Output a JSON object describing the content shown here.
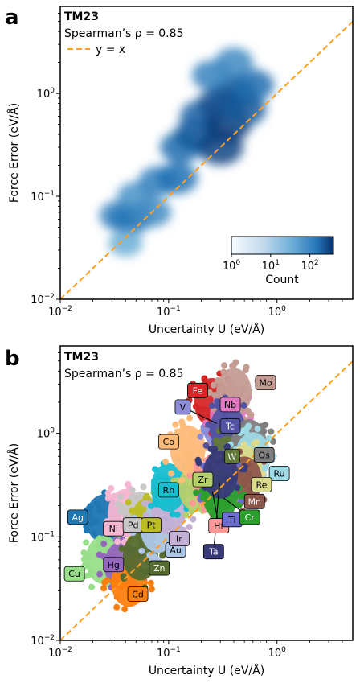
{
  "figure": {
    "panel_a_letter": "a",
    "panel_b_letter": "b"
  },
  "chart_data": [
    {
      "type": "heatmap",
      "panel": "a",
      "xlabel": "Uncertainty U (eV/Å)",
      "ylabel": "Force Error (eV/Å)",
      "xscale": "log",
      "yscale": "log",
      "xlim": [
        0.01,
        5
      ],
      "ylim": [
        0.01,
        7
      ],
      "x_ticks": [
        {
          "value": 0.01,
          "base": "10",
          "exp": "−2"
        },
        {
          "value": 0.1,
          "base": "10",
          "exp": "−1"
        },
        {
          "value": 1,
          "base": "10",
          "exp": "0"
        }
      ],
      "y_ticks": [
        {
          "value": 0.01,
          "base": "10",
          "exp": "−2"
        },
        {
          "value": 0.1,
          "base": "10",
          "exp": "−1"
        },
        {
          "value": 1,
          "base": "10",
          "exp": "0"
        }
      ],
      "annotation_title": "TM23",
      "annotation_stat": "Spearman’s ρ = 0.85",
      "reference_line": {
        "label": "y = x",
        "color": "#ff9f1c"
      },
      "colorbar": {
        "label": "Count",
        "scale": "log",
        "range": [
          1,
          400
        ],
        "ticks": [
          {
            "value": 1,
            "base": "10",
            "exp": "0"
          },
          {
            "value": 10,
            "base": "10",
            "exp": "1"
          },
          {
            "value": 100,
            "base": "10",
            "exp": "2"
          }
        ],
        "colors": [
          "#f7fbff",
          "#6baed6",
          "#08306b"
        ]
      },
      "density_blobs": [
        {
          "x": 0.035,
          "y": 0.065,
          "count": 60
        },
        {
          "x": 0.045,
          "y": 0.06,
          "count": 80
        },
        {
          "x": 0.05,
          "y": 0.1,
          "count": 40
        },
        {
          "x": 0.04,
          "y": 0.035,
          "count": 20
        },
        {
          "x": 0.07,
          "y": 0.07,
          "count": 50
        },
        {
          "x": 0.08,
          "y": 0.14,
          "count": 60
        },
        {
          "x": 0.12,
          "y": 0.15,
          "count": 90
        },
        {
          "x": 0.13,
          "y": 0.3,
          "count": 100
        },
        {
          "x": 0.18,
          "y": 0.4,
          "count": 150
        },
        {
          "x": 0.2,
          "y": 0.6,
          "count": 120
        },
        {
          "x": 0.3,
          "y": 0.3,
          "count": 250
        },
        {
          "x": 0.35,
          "y": 0.5,
          "count": 300
        },
        {
          "x": 0.3,
          "y": 0.8,
          "count": 200
        },
        {
          "x": 0.4,
          "y": 1.0,
          "count": 180
        },
        {
          "x": 0.5,
          "y": 0.7,
          "count": 150
        },
        {
          "x": 0.6,
          "y": 1.2,
          "count": 100
        },
        {
          "x": 0.25,
          "y": 1.5,
          "count": 60
        },
        {
          "x": 0.4,
          "y": 2.0,
          "count": 50
        }
      ]
    },
    {
      "type": "scatter",
      "panel": "b",
      "xlabel": "Uncertainty U (eV/Å)",
      "ylabel": "Force Error (eV/Å)",
      "xscale": "log",
      "yscale": "log",
      "xlim": [
        0.01,
        5
      ],
      "ylim": [
        0.01,
        7
      ],
      "x_ticks": [
        {
          "value": 0.01,
          "base": "10",
          "exp": "−2"
        },
        {
          "value": 0.1,
          "base": "10",
          "exp": "−1"
        },
        {
          "value": 1,
          "base": "10",
          "exp": "0"
        }
      ],
      "y_ticks": [
        {
          "value": 0.01,
          "base": "10",
          "exp": "−2"
        },
        {
          "value": 0.1,
          "base": "10",
          "exp": "−1"
        },
        {
          "value": 1,
          "base": "10",
          "exp": "0"
        }
      ],
      "annotation_title": "TM23",
      "annotation_stat": "Spearman’s ρ = 0.85",
      "reference_line": {
        "label": "y = x",
        "color": "#ff9f1c"
      },
      "series": [
        {
          "name": "Ag",
          "color": "#1f77b4",
          "x": 0.025,
          "y": 0.15,
          "label": {
            "x": 0.0145,
            "y": 0.155
          }
        },
        {
          "name": "Cu",
          "color": "#98df8a",
          "x": 0.025,
          "y": 0.06,
          "label": {
            "x": 0.0135,
            "y": 0.044
          }
        },
        {
          "name": "Hg",
          "color": "#9467bd",
          "x": 0.037,
          "y": 0.053,
          "label": {
            "x": 0.031,
            "y": 0.054
          }
        },
        {
          "name": "Cd",
          "color": "#ff7f0e",
          "x": 0.043,
          "y": 0.036,
          "label": {
            "x": 0.052,
            "y": 0.028
          }
        },
        {
          "name": "Ni",
          "color": "#f7b6d2",
          "x": 0.04,
          "y": 0.17,
          "label": {
            "x": 0.031,
            "y": 0.12
          }
        },
        {
          "name": "Pd",
          "color": "#c7c7c7",
          "x": 0.055,
          "y": 0.16,
          "label": {
            "x": 0.047,
            "y": 0.13
          }
        },
        {
          "name": "Pt",
          "color": "#bcbd22",
          "x": 0.065,
          "y": 0.14,
          "label": {
            "x": 0.069,
            "y": 0.13
          }
        },
        {
          "name": "Zn",
          "color": "#556b2f",
          "x": 0.055,
          "y": 0.065,
          "label": {
            "x": 0.082,
            "y": 0.05
          }
        },
        {
          "name": "Au",
          "color": "#aec7e8",
          "x": 0.08,
          "y": 0.12,
          "label": {
            "x": 0.116,
            "y": 0.075
          }
        },
        {
          "name": "Ir",
          "color": "#c5b0d5",
          "x": 0.1,
          "y": 0.18,
          "label": {
            "x": 0.125,
            "y": 0.096
          }
        },
        {
          "name": "Rh",
          "color": "#17becf",
          "x": 0.1,
          "y": 0.3,
          "label": {
            "x": 0.1,
            "y": 0.285
          }
        },
        {
          "name": "Zr",
          "color": "#b5cf6b",
          "x": 0.18,
          "y": 0.3,
          "label": {
            "x": 0.207,
            "y": 0.358
          }
        },
        {
          "name": "Co",
          "color": "#ffbb78",
          "x": 0.15,
          "y": 0.7,
          "label": {
            "x": 0.1,
            "y": 0.83
          }
        },
        {
          "name": "V",
          "color": "#8c8cd9",
          "x": 0.3,
          "y": 1.2,
          "label": {
            "x": 0.135,
            "y": 1.8
          }
        },
        {
          "name": "Fe",
          "color": "#d62728",
          "x": 0.25,
          "y": 2.0,
          "label": {
            "x": 0.185,
            "y": 2.6
          }
        },
        {
          "name": "Nb",
          "color": "#e377c2",
          "x": 0.35,
          "y": 1.5,
          "label": {
            "x": 0.37,
            "y": 1.9
          }
        },
        {
          "name": "Mo",
          "color": "#c49c94",
          "x": 0.4,
          "y": 2.5,
          "label": {
            "x": 0.785,
            "y": 3.1
          }
        },
        {
          "name": "Tc",
          "color": "#5254a3",
          "x": 0.35,
          "y": 1.1,
          "label": {
            "x": 0.37,
            "y": 1.18
          }
        },
        {
          "name": "W",
          "color": "#637939",
          "x": 0.35,
          "y": 0.55,
          "label": {
            "x": 0.385,
            "y": 0.6
          }
        },
        {
          "name": "Os",
          "color": "#7f7f7f",
          "x": 0.55,
          "y": 0.8,
          "label": {
            "x": 0.76,
            "y": 0.62
          }
        },
        {
          "name": "Ru",
          "color": "#9edae5",
          "x": 0.6,
          "y": 0.6,
          "label": {
            "x": 1.05,
            "y": 0.41
          }
        },
        {
          "name": "Re",
          "color": "#dbdb8d",
          "x": 0.5,
          "y": 0.45,
          "label": {
            "x": 0.72,
            "y": 0.32
          }
        },
        {
          "name": "Mn",
          "color": "#8c564b",
          "x": 0.5,
          "y": 0.35,
          "label": {
            "x": 0.62,
            "y": 0.22
          }
        },
        {
          "name": "Hf",
          "color": "#ff9896",
          "x": 0.25,
          "y": 0.3,
          "label": {
            "x": 0.29,
            "y": 0.128
          }
        },
        {
          "name": "Ti",
          "color": "#6b6ecf",
          "x": 0.3,
          "y": 0.3,
          "label": {
            "x": 0.385,
            "y": 0.147
          }
        },
        {
          "name": "Cr",
          "color": "#2ca02c",
          "x": 0.3,
          "y": 0.25,
          "label": {
            "x": 0.56,
            "y": 0.155
          }
        },
        {
          "name": "Ta",
          "color": "#393b79",
          "x": 0.3,
          "y": 0.4,
          "label": {
            "x": 0.26,
            "y": 0.072
          }
        }
      ]
    }
  ]
}
